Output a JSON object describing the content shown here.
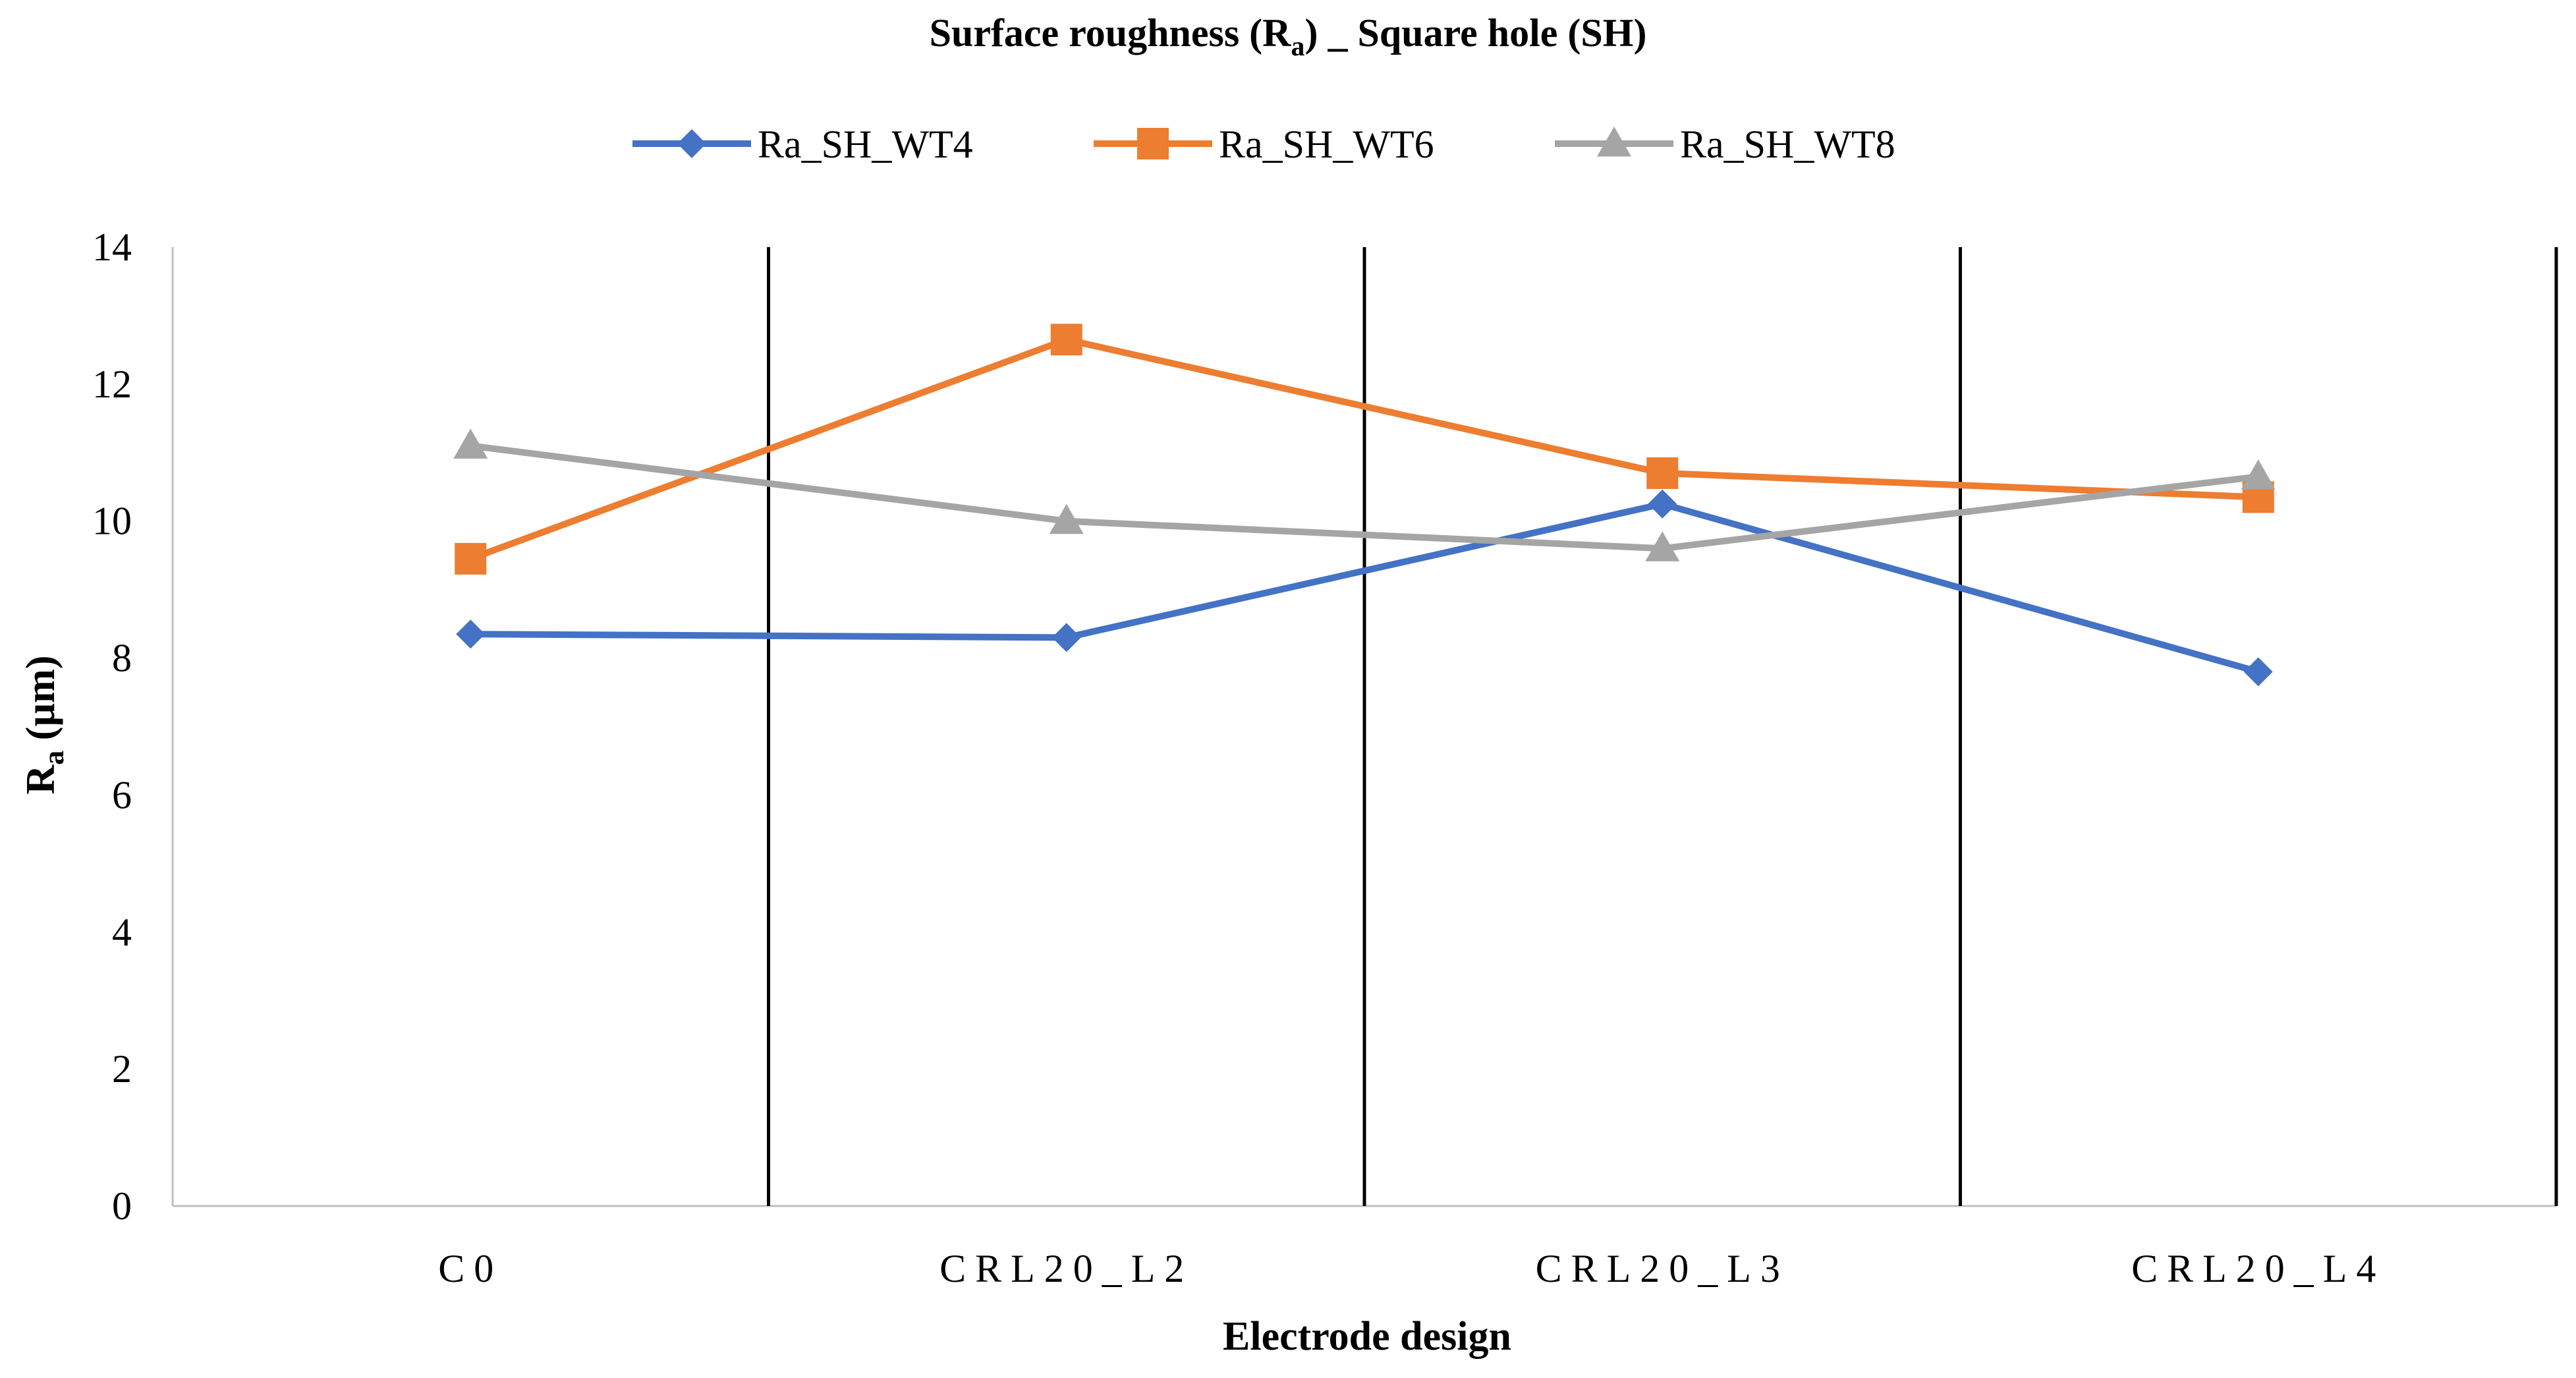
{
  "chart_data": {
    "type": "line",
    "title_main": "Surface roughness (R",
    "title_sub": "a",
    "title_rest": ") _ Square hole (SH)",
    "xlabel": "Electrode design",
    "ylabel_main": "R",
    "ylabel_sub": "a",
    "ylabel_rest": " (µm)",
    "categories": [
      "C0",
      "CRL20_L2",
      "CRL20_L3",
      "CRL20_L4"
    ],
    "ylim": [
      0,
      14
    ],
    "yticks": [
      "0",
      "2",
      "4",
      "6",
      "8",
      "10",
      "12",
      "14"
    ],
    "legend_position": "top",
    "series": [
      {
        "name": "Ra_SH_WT4",
        "color": "#4472C4",
        "marker": "diamond",
        "values": [
          8.35,
          8.3,
          10.25,
          7.8
        ]
      },
      {
        "name": "Ra_SH_WT6",
        "color": "#ED7D31",
        "marker": "square",
        "values": [
          9.45,
          12.65,
          10.7,
          10.35
        ]
      },
      {
        "name": "Ra_SH_WT8",
        "color": "#A5A5A5",
        "marker": "triangle",
        "values": [
          11.1,
          10.0,
          9.6,
          10.65
        ]
      }
    ]
  }
}
